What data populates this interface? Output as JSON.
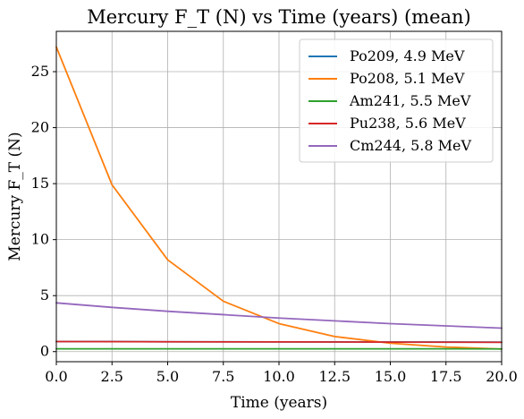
{
  "chart_data": {
    "type": "line",
    "title": "Mercury F_T (N) vs Time (years) (mean)",
    "xlabel": "Time (years)",
    "ylabel": "Mercury F_T (N)",
    "xlim": [
      0,
      20
    ],
    "ylim": [
      -0.9,
      28.6
    ],
    "xticks": [
      0,
      2.5,
      5,
      7.5,
      10,
      12.5,
      15,
      17.5,
      20
    ],
    "xtick_labels": [
      "0.0",
      "2.5",
      "5.0",
      "7.5",
      "10.0",
      "12.5",
      "15.0",
      "17.5",
      "20.0"
    ],
    "yticks": [
      0,
      5,
      10,
      15,
      20,
      25
    ],
    "ytick_labels": [
      "0",
      "5",
      "10",
      "15",
      "20",
      "25"
    ],
    "grid": true,
    "legend_position": "top-right",
    "x": [
      0,
      2.5,
      5,
      7.5,
      10,
      12.5,
      15,
      17.5,
      20
    ],
    "series": [
      {
        "name": "Po209, 4.9 MeV",
        "color": "#1f77b4",
        "values": [
          0.9,
          0.9,
          0.88,
          0.88,
          0.87,
          0.87,
          0.86,
          0.86,
          0.85
        ]
      },
      {
        "name": "Po208, 5.1 MeV",
        "color": "#ff7f0e",
        "values": [
          27.2,
          14.9,
          8.2,
          4.5,
          2.5,
          1.35,
          0.75,
          0.41,
          0.23
        ]
      },
      {
        "name": "Am241, 5.5 MeV",
        "color": "#2ca02c",
        "values": [
          0.25,
          0.25,
          0.25,
          0.25,
          0.25,
          0.25,
          0.25,
          0.25,
          0.24
        ]
      },
      {
        "name": "Pu238, 5.6 MeV",
        "color": "#d62728",
        "values": [
          0.9,
          0.89,
          0.88,
          0.87,
          0.87,
          0.86,
          0.85,
          0.84,
          0.83
        ]
      },
      {
        "name": "Cm244, 5.8 MeV",
        "color": "#9467bd",
        "values": [
          4.35,
          3.95,
          3.6,
          3.3,
          3.0,
          2.75,
          2.5,
          2.3,
          2.1
        ]
      }
    ]
  }
}
